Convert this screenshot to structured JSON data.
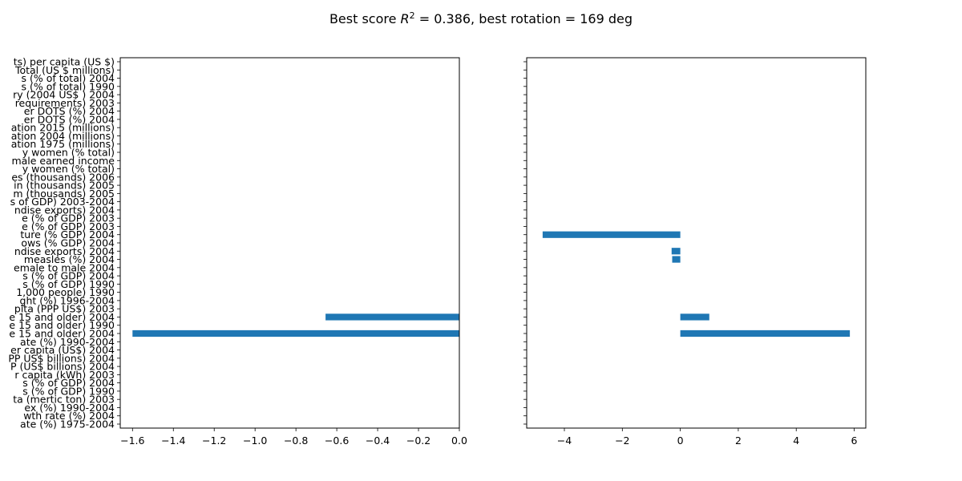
{
  "chart_data": {
    "type": "bar",
    "orientation": "horizontal",
    "title": {
      "prefix": "Best score ",
      "symbol": "R",
      "superscript": "2",
      "suffix": " = 0.386, best rotation = 169 deg"
    },
    "categories": [
      "ts) per capita (US $)",
      "Total (US $ millions)",
      "s (% of total) 2004",
      "s (% of total) 1990",
      "ry (2004 US$ ) 2004",
      "requirements) 2003",
      "er DOTS (%) 2004",
      "er DOTS (%) 2004",
      "ation 2015 (millions)",
      "ation 2004 (millions)",
      "ation 1975 (millions)",
      "y women (% total)",
      "male earned income",
      "y women (% total)",
      "es (thousands) 2006",
      "in (thousands) 2005",
      "m (thousands) 2005",
      "s of GDP) 2003-2004",
      "ndise exports) 2004",
      "e (% of GDP) 2003",
      "e (% of GDP) 2003",
      "ture (% GDP) 2004",
      "ows (% GDP) 2004",
      "ndise exports) 2004",
      "measles (%) 2004",
      "emale to male 2004",
      "s (% of GDP) 2004",
      "s (% of GDP) 1990",
      "1,000 people) 1990",
      "ght (%) 1996-2004",
      "pita (PPP US$) 2003",
      "e 15 and older) 2004",
      "e 15 and older) 1990",
      "e 15 and older) 2004",
      "ate (%) 1990-2004",
      "er capita (US$) 2004",
      "PP US$ billions) 2004",
      "P (US$ billions) 2004",
      "r capita (kWh) 2003",
      "s (% of GDP) 2004",
      "s (% of GDP) 1990",
      "ta (mertic ton) 2003",
      "ex (%) 1990-2004",
      "wth rate (%) 2004",
      "ate (%) 1975-2004"
    ],
    "series": [
      {
        "values": [
          0,
          0,
          0,
          0,
          0,
          0,
          0,
          0,
          0,
          0,
          0,
          0,
          0,
          0,
          0,
          0,
          0,
          0,
          0,
          0,
          0,
          0,
          0,
          0,
          0,
          0,
          0,
          0,
          0,
          0,
          0,
          -0.655,
          0,
          -1.6,
          0,
          0,
          0,
          0,
          0,
          0,
          0,
          0,
          0,
          0,
          0
        ],
        "xlim": [
          -1.66,
          0
        ],
        "xticks": [
          -1.6,
          -1.4,
          -1.2,
          -1.0,
          -0.8,
          -0.6,
          -0.4,
          -0.2,
          0.0
        ],
        "xtick_labels": [
          "−1.6",
          "−1.4",
          "−1.2",
          "−1.0",
          "−0.8",
          "−0.6",
          "−0.4",
          "−0.2",
          "0.0"
        ]
      },
      {
        "values": [
          0,
          0,
          0,
          0,
          0,
          0,
          0,
          0,
          0,
          0,
          0,
          0,
          0,
          0,
          0,
          0,
          0,
          0,
          0,
          0,
          0,
          -4.75,
          0,
          -0.3,
          -0.28,
          0,
          0,
          0,
          0,
          0,
          0,
          1.0,
          0,
          5.85,
          0,
          0,
          0,
          0,
          0,
          0,
          0,
          0,
          0,
          0,
          0
        ],
        "xlim": [
          -5.3,
          6.4
        ],
        "xticks": [
          -4,
          -2,
          0,
          2,
          4,
          6
        ],
        "xtick_labels": [
          "−4",
          "−2",
          "0",
          "2",
          "4",
          "6"
        ]
      }
    ],
    "bar_color": "#1f77b4",
    "grid": false,
    "legend": "none"
  }
}
